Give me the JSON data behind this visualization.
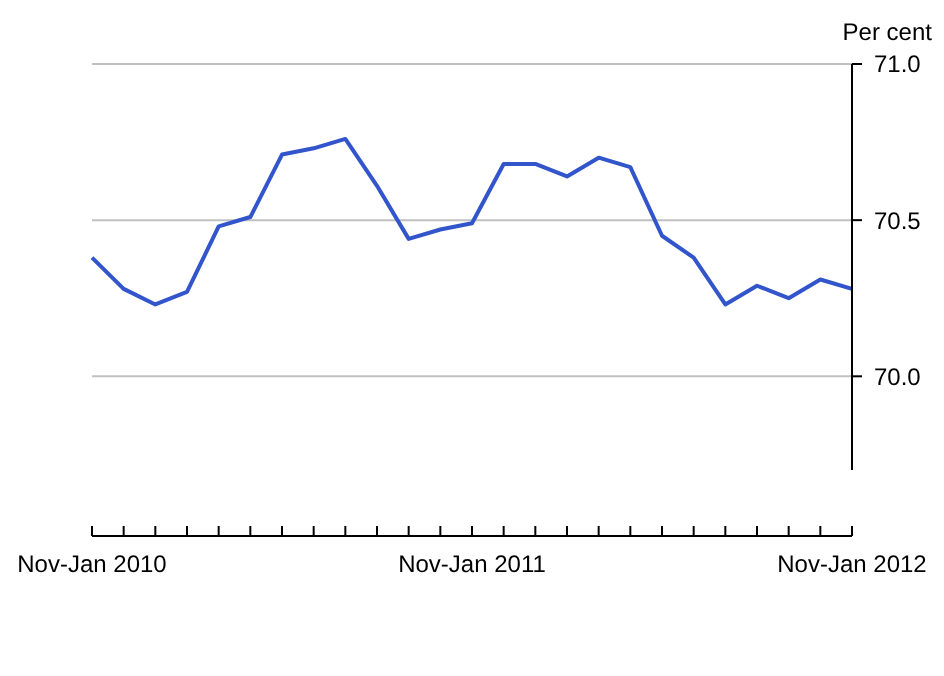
{
  "chart_data": {
    "type": "line",
    "ylabel": "Per cent",
    "categories": [
      "Nov-Jan 2010",
      null,
      null,
      null,
      null,
      null,
      null,
      null,
      null,
      null,
      null,
      null,
      "Nov-Jan 2011",
      null,
      null,
      null,
      null,
      null,
      null,
      null,
      null,
      null,
      null,
      null,
      "Nov-Jan 2012"
    ],
    "series": [
      {
        "color": "#3355cc",
        "values": [
          70.38,
          70.28,
          70.23,
          70.27,
          70.48,
          70.51,
          70.71,
          70.73,
          70.76,
          70.61,
          70.44,
          70.47,
          70.49,
          70.68,
          70.68,
          70.64,
          70.7,
          70.67,
          70.45,
          70.38,
          70.23,
          70.29,
          70.25,
          70.31,
          70.28
        ]
      }
    ],
    "ylim": [
      69.7,
      71.0
    ],
    "yticks": [
      {
        "value": 70.0,
        "label": "70.0"
      },
      {
        "value": 70.5,
        "label": "70.5"
      },
      {
        "value": 71.0,
        "label": "71.0"
      }
    ],
    "grid": "y",
    "marker": "none",
    "line_style": "solid"
  }
}
